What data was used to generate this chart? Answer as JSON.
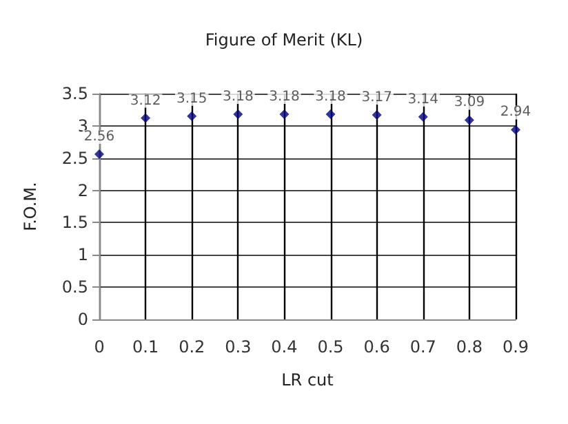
{
  "chart_data": {
    "type": "scatter",
    "title": "Figure of Merit (KL)",
    "xlabel": "LR cut",
    "ylabel": "F.O.M.",
    "x": [
      0,
      0.1,
      0.2,
      0.3,
      0.4,
      0.5,
      0.6,
      0.7,
      0.8,
      0.9
    ],
    "series": [
      {
        "color": "#000080",
        "values": [
          2.56,
          3.12,
          3.15,
          3.18,
          3.18,
          3.18,
          3.17,
          3.14,
          3.09,
          2.94
        ]
      }
    ],
    "xlim": [
      0,
      0.9
    ],
    "xticks": [
      0,
      0.1,
      0.2,
      0.3,
      0.4,
      0.5,
      0.6,
      0.7,
      0.8,
      0.9
    ],
    "ylim": [
      0,
      3.5
    ],
    "yticks": [
      0,
      0.5,
      1,
      1.5,
      2,
      2.5,
      3,
      3.5
    ],
    "grid": true,
    "marker": "diamond",
    "data_labels": true
  }
}
